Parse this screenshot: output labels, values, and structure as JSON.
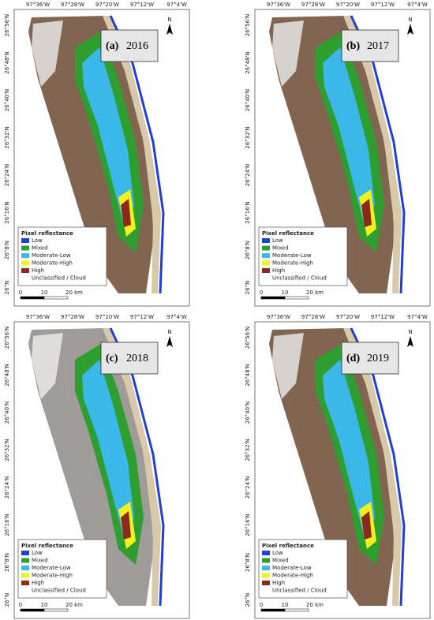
{
  "shared": {
    "lon_labels": [
      "97°36'W",
      "97°28'W",
      "97°20'W",
      "97°12'W",
      "97°4'W"
    ],
    "lat_labels": [
      "26°56'N",
      "26°48'N",
      "26°40'N",
      "26°32'N",
      "26°24'N",
      "26°16'N",
      "26°8'N",
      "26°N"
    ],
    "north": "N",
    "legend": {
      "title": "Pixel reflectance",
      "items": [
        {
          "label": "Low",
          "color": "#1f3fd6"
        },
        {
          "label": "Mixed",
          "color": "#2e9e2e"
        },
        {
          "label": "Moderate-Low",
          "color": "#3cb8e8"
        },
        {
          "label": "Moderate-High",
          "color": "#f2f01e"
        },
        {
          "label": "High",
          "color": "#8b2a1a"
        },
        {
          "label": "Unclassified / Cloud",
          "color": "#ffffff"
        }
      ]
    },
    "scale": [
      "0",
      "10",
      "20 km"
    ]
  },
  "panels": [
    {
      "letter": "(a)",
      "year": "2016"
    },
    {
      "letter": "(b)",
      "year": "2017"
    },
    {
      "letter": "(c)",
      "year": "2018"
    },
    {
      "letter": "(d)",
      "year": "2019"
    }
  ]
}
